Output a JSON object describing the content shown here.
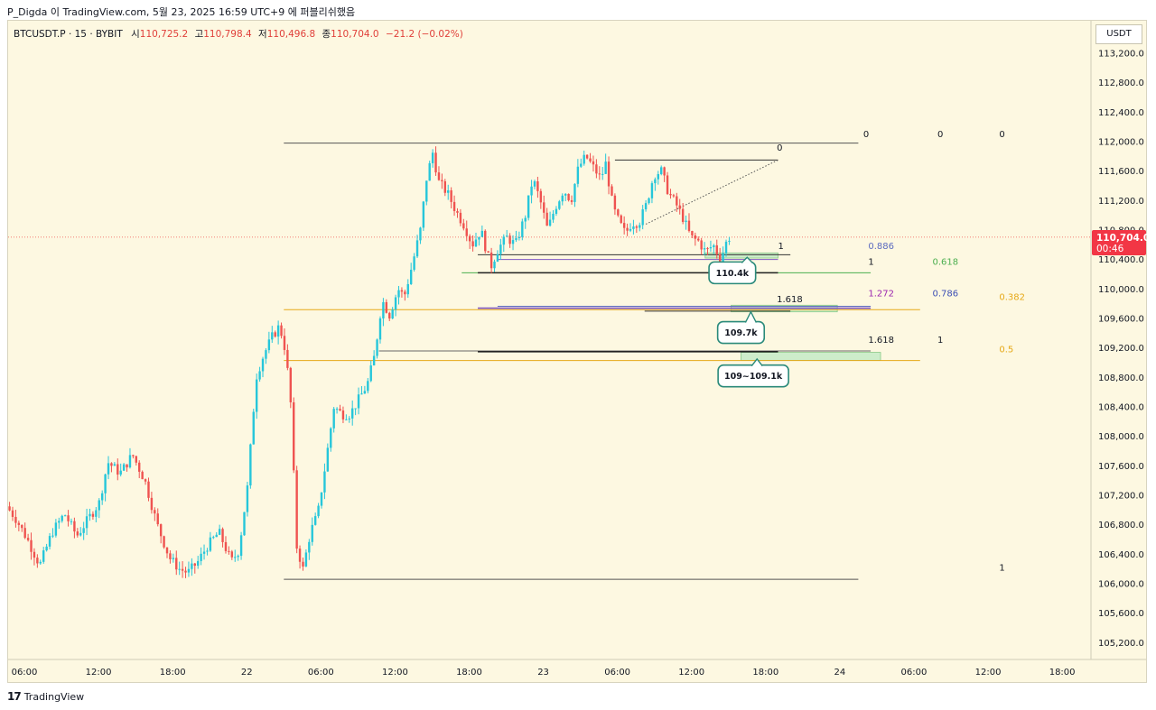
{
  "caption": "P_Digda 이 TradingView.com, 5월 23, 2025 16:59 UTC+9 에 퍼블리쉬했음",
  "legend": {
    "symbol": "BTCUSDT.P · 15 · BYBIT",
    "open_label": "시",
    "open": "110,725.2",
    "high_label": "고",
    "high": "110,798.4",
    "low_label": "저",
    "low": "110,496.8",
    "close_label": "종",
    "close": "110,704.0",
    "change": "−21.2 (−0.02%)"
  },
  "unit": "USDT",
  "price_badge": {
    "price": "110,704.0",
    "countdown": "00:46",
    "color": "#f23645"
  },
  "footer": {
    "logo": "𝟭𝟳",
    "brand": "TradingView"
  },
  "colors": {
    "up": "#26c6da",
    "down": "#ef5350",
    "background": "#fdf8e1"
  },
  "chart_data": {
    "type": "candlestick",
    "y_ticks": [
      113200,
      112800,
      112400,
      112000,
      111600,
      111200,
      110800,
      110400,
      110000,
      109600,
      109200,
      108800,
      108400,
      108000,
      107600,
      107200,
      106800,
      106400,
      106000,
      105600,
      105200
    ],
    "y_tick_labels": [
      "113,200.0",
      "112,800.0",
      "112,400.0",
      "112,000.0",
      "111,600.0",
      "111,200.0",
      "110,800.0",
      "110,400.0",
      "110,000.0",
      "109,600.0",
      "109,200.0",
      "108,800.0",
      "108,400.0",
      "108,000.0",
      "107,600.0",
      "107,200.0",
      "106,800.0",
      "106,400.0",
      "106,000.0",
      "105,600.0",
      "105,200.0"
    ],
    "ylim": [
      105070,
      113310
    ],
    "time_range_hours": [
      -1.5,
      53.5
    ],
    "x_ticks": [
      {
        "t": 0,
        "label": "06:00"
      },
      {
        "t": 6,
        "label": "12:00"
      },
      {
        "t": 12,
        "label": "18:00"
      },
      {
        "t": 18,
        "label": "22"
      },
      {
        "t": 24,
        "label": "06:00"
      },
      {
        "t": 30,
        "label": "12:00"
      },
      {
        "t": 36,
        "label": "18:00"
      },
      {
        "t": 42,
        "label": "23"
      },
      {
        "t": 48,
        "label": "06:00"
      },
      {
        "t": 54,
        "label": "12:00"
      },
      {
        "t": 60,
        "label": "18:00"
      },
      {
        "t": 66,
        "label": "24"
      },
      {
        "t": 72,
        "label": "06:00"
      },
      {
        "t": 78,
        "label": "12:00"
      },
      {
        "t": 84,
        "label": "18:00"
      }
    ],
    "price_path": [
      [
        -1.2,
        107050
      ],
      [
        -0.5,
        106900
      ],
      [
        0.5,
        106600
      ],
      [
        1.5,
        106250
      ],
      [
        2.5,
        106700
      ],
      [
        3.5,
        106950
      ],
      [
        4.5,
        106650
      ],
      [
        5.5,
        106900
      ],
      [
        6.3,
        107100
      ],
      [
        7,
        107650
      ],
      [
        8,
        107500
      ],
      [
        9,
        107750
      ],
      [
        10,
        107400
      ],
      [
        11,
        106800
      ],
      [
        12,
        106350
      ],
      [
        12.8,
        106200
      ],
      [
        13.5,
        106150
      ],
      [
        14.3,
        106300
      ],
      [
        15,
        106500
      ],
      [
        16,
        106700
      ],
      [
        17,
        106300
      ],
      [
        17.6,
        106450
      ],
      [
        18.3,
        107300
      ],
      [
        19,
        108800
      ],
      [
        19.6,
        109100
      ],
      [
        20.3,
        109350
      ],
      [
        20.9,
        109500
      ],
      [
        21.4,
        109150
      ],
      [
        21.8,
        108450
      ],
      [
        22.3,
        106500
      ],
      [
        22.8,
        106200
      ],
      [
        23.4,
        106700
      ],
      [
        24,
        106950
      ],
      [
        24.6,
        107600
      ],
      [
        25.3,
        108400
      ],
      [
        26,
        108300
      ],
      [
        26.6,
        108300
      ],
      [
        27.3,
        108500
      ],
      [
        28,
        108700
      ],
      [
        28.6,
        109100
      ],
      [
        29.2,
        109850
      ],
      [
        29.8,
        109650
      ],
      [
        30.5,
        110000
      ],
      [
        31,
        109900
      ],
      [
        31.6,
        110300
      ],
      [
        32.3,
        110800
      ],
      [
        32.8,
        111500
      ],
      [
        33.3,
        111850
      ],
      [
        33.8,
        111450
      ],
      [
        34.5,
        111300
      ],
      [
        35.2,
        111050
      ],
      [
        35.9,
        110850
      ],
      [
        36.5,
        110600
      ],
      [
        37.2,
        110800
      ],
      [
        38,
        110300
      ],
      [
        38.6,
        110550
      ],
      [
        39.3,
        110700
      ],
      [
        40,
        110600
      ],
      [
        40.8,
        111000
      ],
      [
        41.4,
        111500
      ],
      [
        42,
        111200
      ],
      [
        42.6,
        110800
      ],
      [
        43.2,
        111100
      ],
      [
        43.9,
        111350
      ],
      [
        44.5,
        111200
      ],
      [
        45.1,
        111650
      ],
      [
        45.7,
        111800
      ],
      [
        46.3,
        111650
      ],
      [
        46.9,
        111500
      ],
      [
        47.3,
        111700
      ],
      [
        47.9,
        111100
      ],
      [
        48.4,
        110900
      ],
      [
        48.9,
        110750
      ],
      [
        49.4,
        110900
      ],
      [
        50,
        110900
      ],
      [
        50.6,
        111150
      ],
      [
        51.2,
        111550
      ],
      [
        51.8,
        111600
      ],
      [
        52.4,
        111300
      ],
      [
        53,
        111150
      ],
      [
        53.6,
        110950
      ],
      [
        54.2,
        110700
      ],
      [
        54.8,
        110650
      ],
      [
        55.4,
        110500
      ],
      [
        56,
        110600
      ],
      [
        56.6,
        110400
      ],
      [
        57.2,
        110700
      ]
    ],
    "seed": 7,
    "current_price": 110704,
    "levels": [
      {
        "t1": 21,
        "t2": 67.5,
        "price": 111980,
        "color": "#555555",
        "width": 1
      },
      {
        "t1": 21,
        "t2": 67.5,
        "price": 106060,
        "color": "#555555",
        "width": 1
      },
      {
        "t1": 47.8,
        "t2": 61,
        "price": 111750,
        "color": "#333333",
        "width": 1
      },
      {
        "t1": 36.7,
        "t2": 62,
        "price": 110465,
        "color": "#333333",
        "width": 1
      },
      {
        "t1": 38.3,
        "t2": 61,
        "price": 110400,
        "color": "#7e57c2",
        "width": 1
      },
      {
        "t1": 35.4,
        "t2": 68.5,
        "price": 110220,
        "color": "#4caf50",
        "width": 1
      },
      {
        "t1": 36.7,
        "t2": 61,
        "price": 110220,
        "color": "#222222",
        "width": 1.6
      },
      {
        "t1": 38.3,
        "t2": 68.5,
        "price": 109765,
        "color": "#5c6bc0",
        "width": 1
      },
      {
        "t1": 36.7,
        "t2": 68.5,
        "price": 109740,
        "color": "#7e57c2",
        "width": 1.6
      },
      {
        "t1": 50.2,
        "t2": 62,
        "price": 109700,
        "color": "#333333",
        "width": 1
      },
      {
        "t1": 21,
        "t2": 72.5,
        "price": 109720,
        "color": "#e6a817",
        "width": 1
      },
      {
        "t1": 28.7,
        "t2": 68.5,
        "price": 109160,
        "color": "#666666",
        "width": 1
      },
      {
        "t1": 36.7,
        "t2": 61,
        "price": 109150,
        "color": "#222222",
        "width": 1.6
      },
      {
        "t1": 21,
        "t2": 72.5,
        "price": 109030,
        "color": "#e6a817",
        "width": 1
      }
    ],
    "diagonal": {
      "t1": 50.3,
      "p1": 110880,
      "t2": 61,
      "p2": 111750
    },
    "zones": [
      {
        "t1": 55.1,
        "t2": 61,
        "p1": 110490,
        "p2": 110420
      },
      {
        "t1": 57.2,
        "t2": 65.8,
        "p1": 109780,
        "p2": 109690
      },
      {
        "t1": 58,
        "t2": 69.3,
        "p1": 109140,
        "p2": 109030
      }
    ],
    "fib_labels": [
      {
        "text": "0",
        "t": 60.9,
        "price": 111880,
        "color": "#131722"
      },
      {
        "text": "0",
        "t": 67.9,
        "price": 112060,
        "color": "#131722"
      },
      {
        "text": "0",
        "t": 73.9,
        "price": 112060,
        "color": "#131722"
      },
      {
        "text": "0",
        "t": 78.9,
        "price": 112060,
        "color": "#131722"
      },
      {
        "text": "1",
        "t": 61,
        "price": 110540,
        "color": "#131722"
      },
      {
        "text": "0.886",
        "t": 68.3,
        "price": 110540,
        "color": "#5c6bc0"
      },
      {
        "text": "1",
        "t": 68.3,
        "price": 110330,
        "color": "#131722"
      },
      {
        "text": "0.618",
        "t": 73.5,
        "price": 110330,
        "color": "#4caf50"
      },
      {
        "text": "1.618",
        "t": 60.9,
        "price": 109820,
        "color": "#131722"
      },
      {
        "text": "1.272",
        "t": 68.3,
        "price": 109900,
        "color": "#9c27b0"
      },
      {
        "text": "0.786",
        "t": 73.5,
        "price": 109900,
        "color": "#3f51b5"
      },
      {
        "text": "0.382",
        "t": 78.9,
        "price": 109850,
        "color": "#e6a817"
      },
      {
        "text": "1.618",
        "t": 68.3,
        "price": 109270,
        "color": "#131722"
      },
      {
        "text": "1",
        "t": 73.9,
        "price": 109270,
        "color": "#131722"
      },
      {
        "text": "0.5",
        "t": 78.9,
        "price": 109140,
        "color": "#e6a817"
      },
      {
        "text": "1",
        "t": 78.9,
        "price": 106180,
        "color": "#131722"
      }
    ],
    "callouts": [
      {
        "text": "110.4k",
        "t": 58.5,
        "price": 110430,
        "box_t": 57.3,
        "box_price": 110220
      },
      {
        "text": "109.7k",
        "t": 58.8,
        "price": 109690,
        "box_t": 58.0,
        "box_price": 109410
      },
      {
        "text": "109~109.1k",
        "t": 59.3,
        "price": 109050,
        "box_t": 59.0,
        "box_price": 108820
      }
    ]
  }
}
